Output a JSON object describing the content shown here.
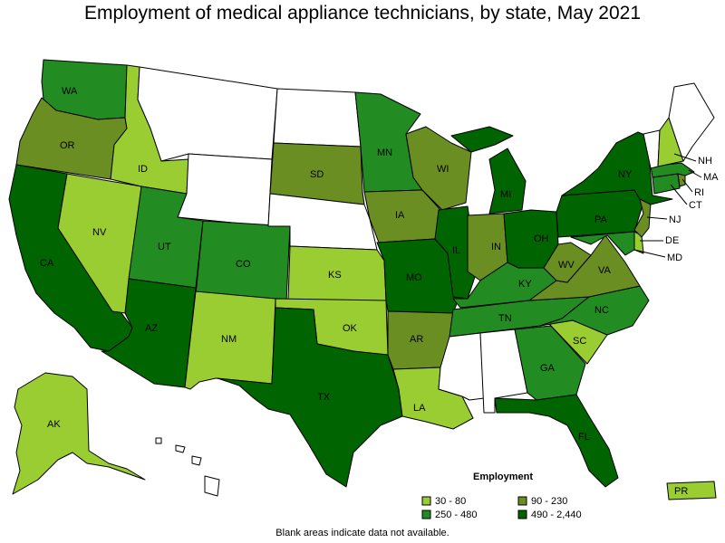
{
  "title": "Employment of medical appliance technicians, by state, May 2021",
  "footnote": "Blank areas indicate data not available.",
  "colors": {
    "blank": "#ffffff",
    "c1": "#9acd32",
    "c2": "#228b22",
    "c3": "#6b8e23",
    "c4": "#006400"
  },
  "legend": {
    "title": "Employment",
    "items": [
      {
        "label": "30 - 80",
        "color_key": "c1"
      },
      {
        "label": "90 - 230",
        "color_key": "c3"
      },
      {
        "label": "250 - 480",
        "color_key": "c2"
      },
      {
        "label": "490 - 2,440",
        "color_key": "c4"
      }
    ]
  },
  "states": [
    {
      "abbr": "WA",
      "bin": "c2"
    },
    {
      "abbr": "OR",
      "bin": "c3"
    },
    {
      "abbr": "CA",
      "bin": "c4"
    },
    {
      "abbr": "NV",
      "bin": "c1"
    },
    {
      "abbr": "ID",
      "bin": "c1"
    },
    {
      "abbr": "MT",
      "bin": "blank"
    },
    {
      "abbr": "WY",
      "bin": "blank"
    },
    {
      "abbr": "UT",
      "bin": "c2"
    },
    {
      "abbr": "AZ",
      "bin": "c4"
    },
    {
      "abbr": "CO",
      "bin": "c2"
    },
    {
      "abbr": "NM",
      "bin": "c1"
    },
    {
      "abbr": "ND",
      "bin": "blank"
    },
    {
      "abbr": "SD",
      "bin": "c3"
    },
    {
      "abbr": "NE",
      "bin": "blank"
    },
    {
      "abbr": "KS",
      "bin": "c1"
    },
    {
      "abbr": "OK",
      "bin": "c1"
    },
    {
      "abbr": "TX",
      "bin": "c4"
    },
    {
      "abbr": "MN",
      "bin": "c2"
    },
    {
      "abbr": "IA",
      "bin": "c3"
    },
    {
      "abbr": "MO",
      "bin": "c4"
    },
    {
      "abbr": "AR",
      "bin": "c3"
    },
    {
      "abbr": "LA",
      "bin": "c1"
    },
    {
      "abbr": "WI",
      "bin": "c3"
    },
    {
      "abbr": "IL",
      "bin": "c4"
    },
    {
      "abbr": "MI",
      "bin": "c4"
    },
    {
      "abbr": "IN",
      "bin": "c3"
    },
    {
      "abbr": "OH",
      "bin": "c4"
    },
    {
      "abbr": "KY",
      "bin": "c2"
    },
    {
      "abbr": "TN",
      "bin": "c2"
    },
    {
      "abbr": "MS",
      "bin": "blank"
    },
    {
      "abbr": "AL",
      "bin": "blank"
    },
    {
      "abbr": "GA",
      "bin": "c2"
    },
    {
      "abbr": "FL",
      "bin": "c4"
    },
    {
      "abbr": "SC",
      "bin": "c1"
    },
    {
      "abbr": "NC",
      "bin": "c2"
    },
    {
      "abbr": "VA",
      "bin": "c3"
    },
    {
      "abbr": "WV",
      "bin": "c3"
    },
    {
      "abbr": "PA",
      "bin": "c4"
    },
    {
      "abbr": "NY",
      "bin": "c4"
    },
    {
      "abbr": "VT",
      "bin": "blank"
    },
    {
      "abbr": "NH",
      "bin": "c1"
    },
    {
      "abbr": "ME",
      "bin": "blank"
    },
    {
      "abbr": "MA",
      "bin": "c2"
    },
    {
      "abbr": "RI",
      "bin": "c3"
    },
    {
      "abbr": "CT",
      "bin": "c2"
    },
    {
      "abbr": "NJ",
      "bin": "c3"
    },
    {
      "abbr": "DE",
      "bin": "c1"
    },
    {
      "abbr": "MD",
      "bin": "c2"
    },
    {
      "abbr": "AK",
      "bin": "c1"
    },
    {
      "abbr": "HI",
      "bin": "blank"
    },
    {
      "abbr": "PR",
      "bin": "c1"
    }
  ]
}
